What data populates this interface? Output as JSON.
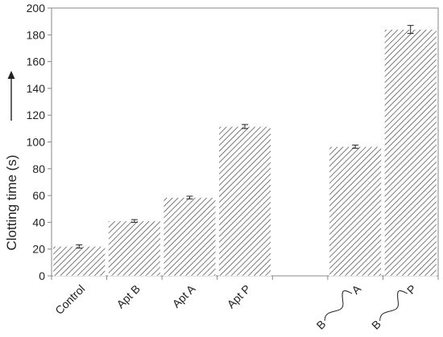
{
  "chart_data": {
    "type": "bar",
    "title": "",
    "xlabel": "",
    "ylabel": "Clotting time (s)",
    "ylim": [
      0,
      200
    ],
    "yticks": [
      0,
      20,
      40,
      60,
      80,
      100,
      120,
      140,
      160,
      180,
      200
    ],
    "grid": false,
    "pattern": "diagonal-hatch",
    "categories": [
      "Control",
      "Apt B",
      "Apt A",
      "Apt P",
      "",
      "B~A",
      "B~P"
    ],
    "tick_labels": [
      {
        "text": "Control"
      },
      {
        "text": "Apt B"
      },
      {
        "text": "Apt A"
      },
      {
        "text": "Apt P"
      },
      {
        "text": ""
      },
      {
        "left": "B",
        "right": "A"
      },
      {
        "left": "B",
        "right": "P"
      }
    ],
    "values": [
      22,
      41,
      58.5,
      111.5,
      null,
      96.5,
      184
    ],
    "errors": [
      1.2,
      1.0,
      1.0,
      1.5,
      null,
      1.2,
      3.0
    ]
  }
}
